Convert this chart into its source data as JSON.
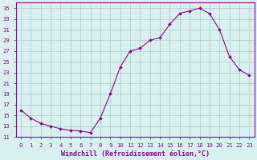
{
  "x": [
    0,
    1,
    2,
    3,
    4,
    5,
    6,
    7,
    8,
    9,
    10,
    11,
    12,
    13,
    14,
    15,
    16,
    17,
    18,
    19,
    20,
    21,
    22,
    23
  ],
  "y": [
    16,
    14.5,
    13.5,
    13,
    12.5,
    12.2,
    12.1,
    11.8,
    14.5,
    19,
    24,
    27,
    27.5,
    29,
    29.5,
    32,
    34,
    34.5,
    35,
    34,
    31,
    26,
    23.5,
    22.5
  ],
  "bg_color": "#d8f0f0",
  "line_color": "#990099",
  "marker_color": "#990099",
  "grid_color": "#aacccc",
  "xlabel": "Windchill (Refroidissement éolien,°C)",
  "xlim": [
    -0.5,
    23.5
  ],
  "ylim": [
    11,
    36
  ],
  "yticks": [
    11,
    13,
    15,
    17,
    19,
    21,
    23,
    25,
    27,
    29,
    31,
    33,
    35
  ],
  "xticks": [
    0,
    1,
    2,
    3,
    4,
    5,
    6,
    7,
    8,
    9,
    10,
    11,
    12,
    13,
    14,
    15,
    16,
    17,
    18,
    19,
    20,
    21,
    22,
    23
  ],
  "xtick_labels": [
    "0",
    "1",
    "2",
    "3",
    "4",
    "5",
    "6",
    "7",
    "8",
    "9",
    "10",
    "11",
    "12",
    "13",
    "14",
    "15",
    "16",
    "17",
    "18",
    "19",
    "20",
    "21",
    "22",
    "23"
  ],
  "font_color": "#990099",
  "xlabel_fontsize": 6.0,
  "tick_fontsize": 5.2
}
